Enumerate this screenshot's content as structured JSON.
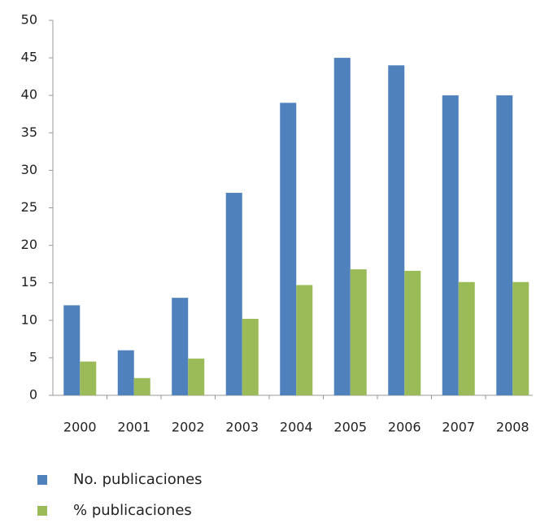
{
  "chart_data": {
    "type": "bar",
    "categories": [
      "2000",
      "2001",
      "2002",
      "2003",
      "2004",
      "2005",
      "2006",
      "2007",
      "2008"
    ],
    "series": [
      {
        "name": "No. publicaciones",
        "color": "#4f81bd",
        "values": [
          12,
          6,
          13,
          27,
          39,
          45,
          44,
          40,
          40
        ]
      },
      {
        "name": "% publicaciones",
        "color": "#9bbb59",
        "values": [
          4.5,
          2.3,
          4.9,
          10.2,
          14.7,
          16.8,
          16.6,
          15.1,
          15.1
        ]
      }
    ],
    "ylim": [
      0,
      50
    ],
    "yticks": [
      0,
      5,
      10,
      15,
      20,
      25,
      30,
      35,
      40,
      45,
      50
    ],
    "grid": false
  }
}
